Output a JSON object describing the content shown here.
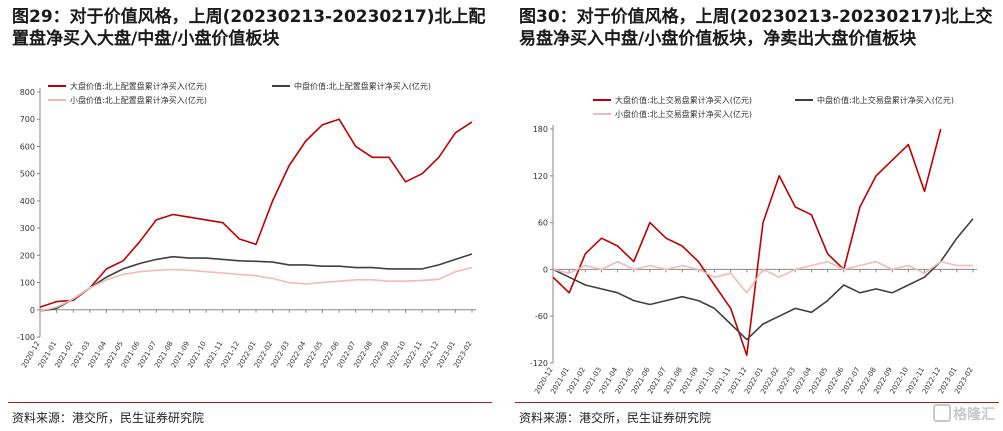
{
  "colors": {
    "large": "#c00000",
    "mid": "#404040",
    "small": "#f4b8b8",
    "accent": "#a8201a",
    "axis": "#888888"
  },
  "watermark": {
    "text": "格隆汇",
    "icon": "gelonghui-logo-icon"
  },
  "chart_data": [
    {
      "type": "line",
      "title": "图29：对于价值风格，上周(20230213-20230217)北上配置盘净买入大盘/中盘/小盘价值板块",
      "source": "资料来源：港交所，民生证券研究院",
      "ylim": [
        -100,
        800
      ],
      "yticks": [
        "800",
        "700",
        "600",
        "500",
        "400",
        "300",
        "200",
        "100",
        "0",
        "-100"
      ],
      "xticks": [
        "2020-12",
        "2021-01",
        "2021-02",
        "2021-03",
        "2021-04",
        "2021-05",
        "2021-06",
        "2021-07",
        "2021-08",
        "2021-09",
        "2021-10",
        "2021-11",
        "2021-12",
        "2022-01",
        "2022-02",
        "2022-03",
        "2022-04",
        "2022-05",
        "2022-06",
        "2022-07",
        "2022-08",
        "2022-09",
        "2022-10",
        "2022-11",
        "2022-12",
        "2023-01",
        "2023-02"
      ],
      "legend_position": "top",
      "grid": false,
      "series": [
        {
          "name": "大盘价值:北上配置盘累计净买入(亿元)",
          "color_key": "large",
          "values": [
            10,
            30,
            35,
            80,
            150,
            180,
            250,
            330,
            350,
            340,
            330,
            320,
            260,
            240,
            400,
            530,
            620,
            680,
            700,
            600,
            560,
            560,
            470,
            500,
            560,
            650,
            690
          ]
        },
        {
          "name": "中盘价值:北上配置盘累计净买入(亿元)",
          "color_key": "mid",
          "values": [
            -5,
            5,
            40,
            80,
            120,
            150,
            170,
            185,
            195,
            190,
            190,
            185,
            180,
            178,
            175,
            165,
            165,
            160,
            160,
            155,
            155,
            150,
            150,
            150,
            165,
            185,
            205
          ]
        },
        {
          "name": "小盘价值:北上配置盘累计净买入(亿元)",
          "color_key": "small",
          "values": [
            -5,
            10,
            40,
            80,
            110,
            130,
            140,
            145,
            148,
            145,
            140,
            135,
            130,
            125,
            115,
            100,
            95,
            100,
            105,
            110,
            110,
            105,
            105,
            108,
            112,
            140,
            155
          ]
        }
      ]
    },
    {
      "type": "line",
      "title": "图30：对于价值风格，上周(20230213-20230217)北上交易盘净买入中盘/小盘价值板块，净卖出大盘价值板块",
      "source": "资料来源：港交所，民生证券研究院",
      "ylim": [
        -120,
        180
      ],
      "yticks": [
        "180",
        "120",
        "60",
        "0",
        "-60",
        "-120"
      ],
      "xticks": [
        "2020-12",
        "2021-01",
        "2021-02",
        "2021-03",
        "2021-04",
        "2021-05",
        "2021-06",
        "2021-07",
        "2021-08",
        "2021-09",
        "2021-10",
        "2021-11",
        "2021-12",
        "2022-01",
        "2022-02",
        "2022-03",
        "2022-04",
        "2022-05",
        "2022-06",
        "2022-07",
        "2022-08",
        "2022-09",
        "2022-10",
        "2022-11",
        "2022-12",
        "2023-01",
        "2023-02"
      ],
      "legend_position": "top",
      "grid": false,
      "series": [
        {
          "name": "大盘价值:北上交易盘累计净买入(亿元)",
          "color_key": "large",
          "values": [
            -10,
            -30,
            20,
            40,
            30,
            10,
            60,
            40,
            30,
            10,
            -20,
            -50,
            -110,
            60,
            120,
            80,
            70,
            20,
            0,
            80,
            120,
            140,
            160,
            100,
            180,
            null,
            null
          ]
        },
        {
          "name": "中盘价值:北上交易盘累计净买入(亿元)",
          "color_key": "mid",
          "values": [
            0,
            -10,
            -20,
            -25,
            -30,
            -40,
            -45,
            -40,
            -35,
            -40,
            -50,
            -70,
            -90,
            -70,
            -60,
            -50,
            -55,
            -40,
            -20,
            -30,
            -25,
            -30,
            -20,
            -10,
            10,
            40,
            65
          ]
        },
        {
          "name": "小盘价值:北上交易盘累计净买入(亿元)",
          "color_key": "small",
          "values": [
            0,
            -5,
            5,
            0,
            10,
            0,
            5,
            0,
            5,
            0,
            -10,
            -5,
            -30,
            0,
            -10,
            0,
            5,
            10,
            0,
            5,
            10,
            0,
            5,
            -5,
            10,
            5,
            5
          ]
        }
      ]
    }
  ]
}
